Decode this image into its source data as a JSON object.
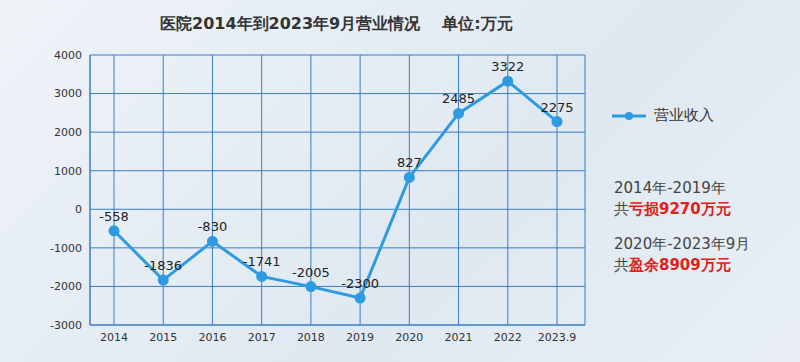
{
  "chart_data": {
    "type": "line",
    "title": "医院2014年到2023年9月营业情况",
    "subtitle": "单位:万元",
    "categories": [
      "2014",
      "2015",
      "2016",
      "2017",
      "2018",
      "2019",
      "2020",
      "2021",
      "2022",
      "2023.9"
    ],
    "series": [
      {
        "name": "营业收入",
        "color": "#2e9ae2",
        "marker": "circle",
        "values": [
          -558,
          -1836,
          -830,
          -1741,
          -2005,
          -2300,
          827,
          2485,
          3322,
          2275
        ]
      }
    ],
    "ylim": [
      -3000,
      4000
    ],
    "yticks": [
      -3000,
      -2000,
      -1000,
      0,
      1000,
      2000,
      3000,
      4000
    ],
    "grid": true,
    "legend": "right",
    "data_labels": true,
    "annotations": [
      {
        "text": "2014年-2019年"
      },
      {
        "text": "共",
        "highlight": "亏损9270万元"
      },
      {
        "text": "2020年-2023年9月"
      },
      {
        "text": "共",
        "highlight": "盈余8909万元"
      }
    ]
  }
}
